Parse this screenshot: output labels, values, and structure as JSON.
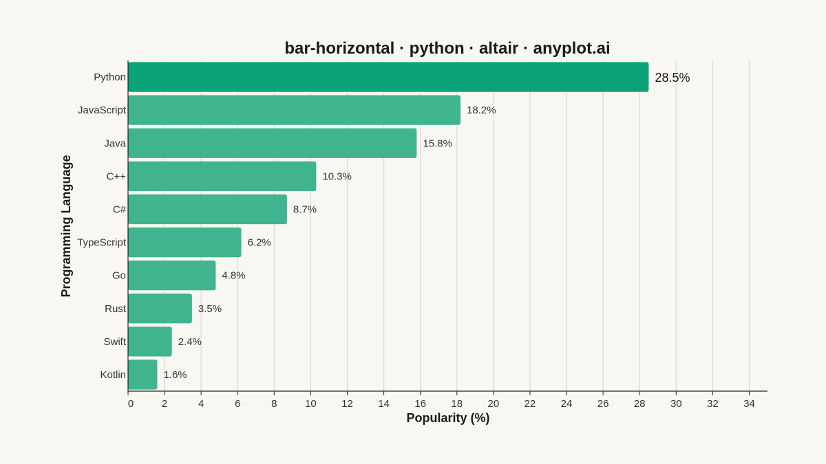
{
  "chart_data": {
    "type": "bar",
    "orientation": "horizontal",
    "title": "bar-horizontal · python · altair · anyplot.ai",
    "xlabel": "Popularity (%)",
    "ylabel": "Programming Language",
    "categories": [
      "Python",
      "JavaScript",
      "Java",
      "C++",
      "C#",
      "TypeScript",
      "Go",
      "Rust",
      "Swift",
      "Kotlin"
    ],
    "values": [
      28.5,
      18.2,
      15.8,
      10.3,
      8.7,
      6.2,
      4.8,
      3.5,
      2.4,
      1.6
    ],
    "value_labels": [
      "28.5%",
      "18.2%",
      "15.8%",
      "10.3%",
      "8.7%",
      "6.2%",
      "4.8%",
      "3.5%",
      "2.4%",
      "1.6%"
    ],
    "xlim": [
      0,
      35
    ],
    "xticks": [
      0,
      2,
      4,
      6,
      8,
      10,
      12,
      14,
      16,
      18,
      20,
      22,
      24,
      26,
      28,
      30,
      32,
      34
    ],
    "grid": true,
    "highlight_category": "Python",
    "colors": {
      "bar": "#3fb48e",
      "bar_highlight": "#0ca37a",
      "background": "#f9f7f1",
      "grid": "#dcdad3",
      "axis": "#222222",
      "text": "#333333"
    }
  }
}
